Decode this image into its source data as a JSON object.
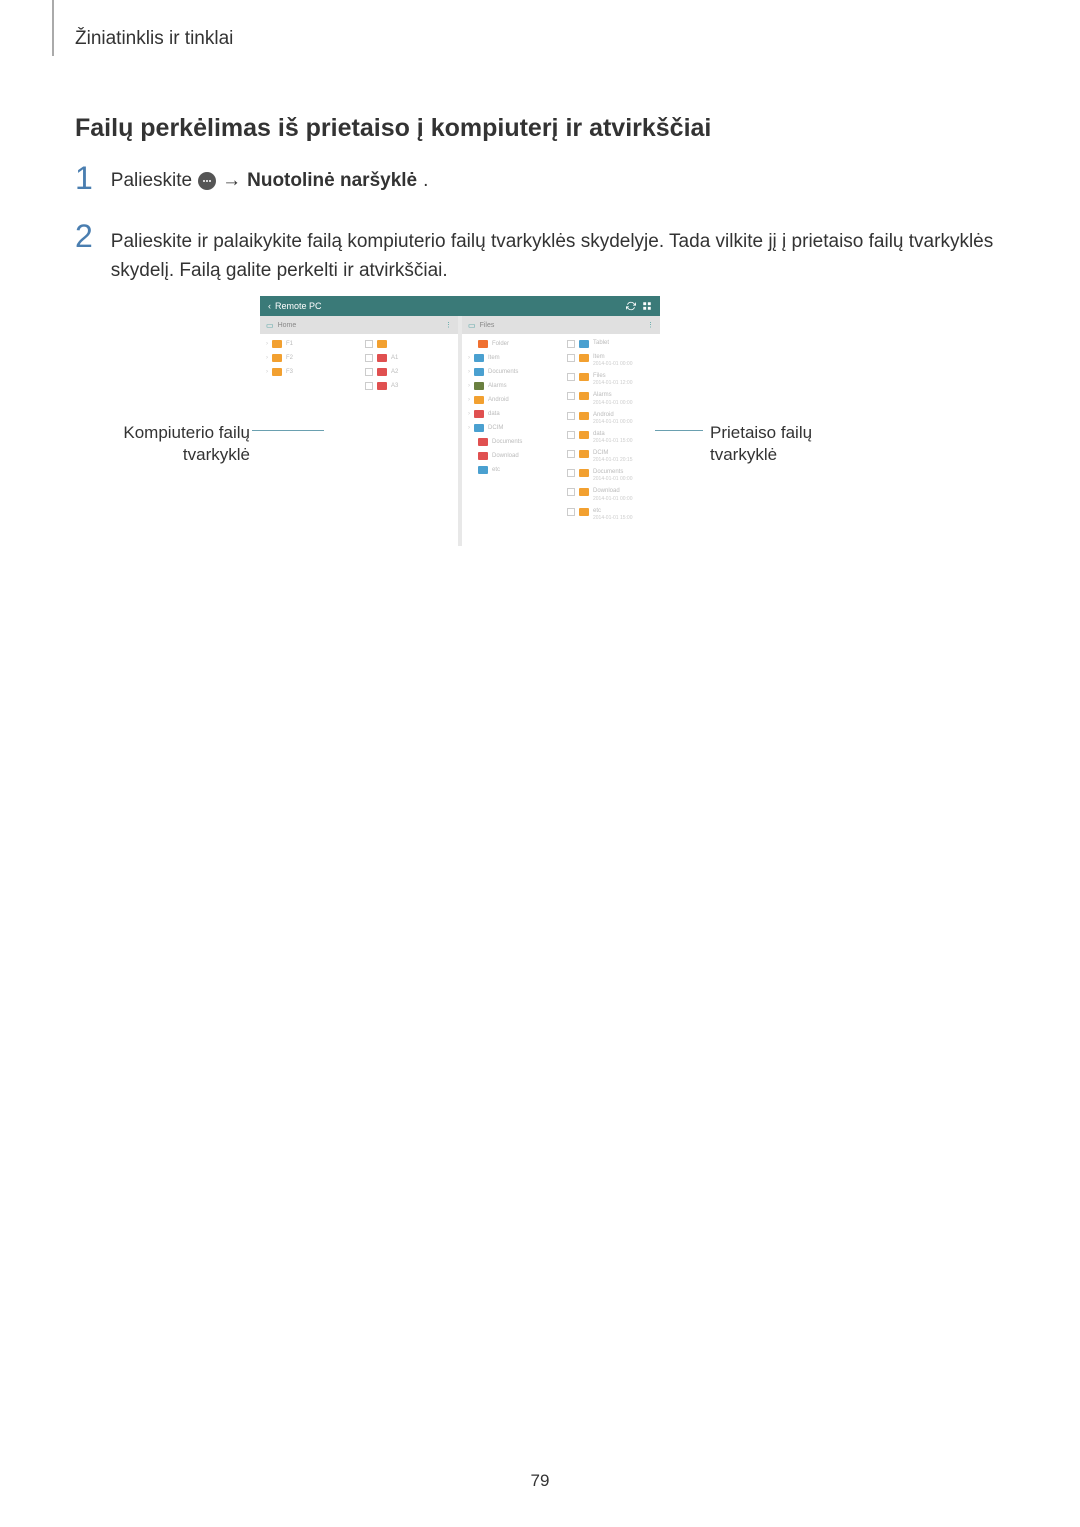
{
  "header": {
    "breadcrumb": "Žiniatinklis ir tinklai"
  },
  "heading": "Failų perkėlimas iš prietaiso į kompiuterį ir atvirkščiai",
  "steps": {
    "one": {
      "number": "1",
      "prefix": "Palieskite",
      "arrow": "→",
      "bold_part": "Nuotolinė naršyklė",
      "suffix": "."
    },
    "two": {
      "number": "2",
      "text": "Palieskite ir palaikykite failą kompiuterio failų tvarkyklės skydelyje. Tada vilkite jį į prietaiso failų tvarkyklės skydelį. Failą galite perkelti ir atvirkščiai."
    }
  },
  "screenshot": {
    "statusbar": {
      "back_arrow": "‹",
      "title": "Remote PC",
      "colors": {
        "background": "#3a7a78",
        "text": "#ffffff"
      }
    },
    "left_panel": {
      "header_label": "Home",
      "header_bg": "#e0e0e0",
      "col1_items": [
        {
          "color": "#f2a030",
          "label": "F1"
        },
        {
          "color": "#f2a030",
          "label": "F2"
        },
        {
          "color": "#f2a030",
          "label": "F3"
        }
      ],
      "col2_items": [
        {
          "color": "#f2a030",
          "label": ""
        },
        {
          "color": "#e05050",
          "label": "A1"
        },
        {
          "color": "#e05050",
          "label": "A2"
        },
        {
          "color": "#e05050",
          "label": "A3"
        }
      ]
    },
    "right_panel": {
      "header_label": "Files",
      "header_bg": "#e0e0e0",
      "col1_items": [
        {
          "color": "#f07030",
          "label": "Folder"
        },
        {
          "color": "#4aa0d0",
          "label": "Item"
        },
        {
          "color": "#4aa0d0",
          "label": "Documents"
        },
        {
          "color": "#6a8040",
          "label": "Alarms"
        },
        {
          "color": "#f2a030",
          "label": "Android"
        },
        {
          "color": "#e05050",
          "label": "data"
        },
        {
          "color": "#4aa0d0",
          "label": "DCIM"
        },
        {
          "color": "#e05050",
          "label": "Documents"
        },
        {
          "color": "#e05050",
          "label": "Download"
        },
        {
          "color": "#4aa0d0",
          "label": "etc"
        }
      ],
      "col2_items": [
        {
          "color": "#4aa0d0",
          "label": "Tablet",
          "sub": ""
        },
        {
          "color": "#f2a030",
          "label": "Item",
          "sub": "2014-01-01 00:00"
        },
        {
          "color": "#f2a030",
          "label": "Files",
          "sub": "2014-01-01 12:00"
        },
        {
          "color": "#f2a030",
          "label": "Alarms",
          "sub": "2014-01-01 00:00"
        },
        {
          "color": "#f2a030",
          "label": "Android",
          "sub": "2014-01-01 00:00"
        },
        {
          "color": "#f2a030",
          "label": "data",
          "sub": "2014-01-01 15:00"
        },
        {
          "color": "#f2a030",
          "label": "DCIM",
          "sub": "2014-01-01 20:15"
        },
        {
          "color": "#f2a030",
          "label": "Documents",
          "sub": "2014-01-01 00:00"
        },
        {
          "color": "#f2a030",
          "label": "Download",
          "sub": "2014-01-01 00:00"
        },
        {
          "color": "#f2a030",
          "label": "etc",
          "sub": "2014-01-01 15:00"
        }
      ]
    }
  },
  "labels": {
    "left": "Kompiuterio failų tvarkyklė",
    "right": "Prietaiso failų tvarkyklė"
  },
  "page_number": "79",
  "colors": {
    "step_number": "#4a7eb0",
    "connector": "#6aa0b0",
    "text": "#333333"
  }
}
